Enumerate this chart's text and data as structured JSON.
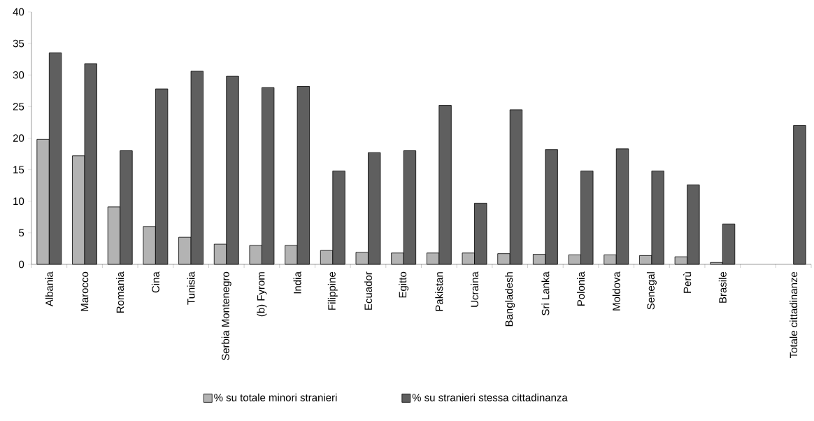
{
  "chart_data": {
    "type": "bar",
    "categories": [
      "Albania",
      "Marocco",
      "Romania",
      "Cina",
      "Tunisia",
      "Serbia Montenegro",
      "(b) Fyrom",
      "India",
      "Filippine",
      "Ecuador",
      "Egitto",
      "Pakistan",
      "Ucraina",
      "Bangladesh",
      "Sri Lanka",
      "Polonia",
      "Moldova",
      "Senegal",
      "Perù",
      "Brasile",
      null,
      "Totale cittadinanze"
    ],
    "series": [
      {
        "name": "% su totale minori stranieri",
        "color": "#b3b3b3",
        "values": [
          19.8,
          17.2,
          9.1,
          6.0,
          4.3,
          3.2,
          3.0,
          3.0,
          2.2,
          1.9,
          1.8,
          1.8,
          1.8,
          1.7,
          1.6,
          1.5,
          1.5,
          1.4,
          1.2,
          0.3,
          null,
          null
        ]
      },
      {
        "name": "% su stranieri stessa cittadinanza",
        "color": "#5f5f5f",
        "values": [
          33.5,
          31.8,
          18.0,
          27.8,
          30.6,
          29.8,
          28.0,
          28.2,
          14.8,
          17.7,
          18.0,
          25.2,
          9.7,
          24.5,
          18.2,
          14.8,
          18.3,
          14.8,
          12.6,
          6.4,
          null,
          22.0
        ]
      }
    ],
    "ylim": [
      0,
      40
    ],
    "yticks": [
      0,
      5,
      10,
      15,
      20,
      25,
      30,
      35,
      40
    ],
    "legend": "bottom"
  }
}
